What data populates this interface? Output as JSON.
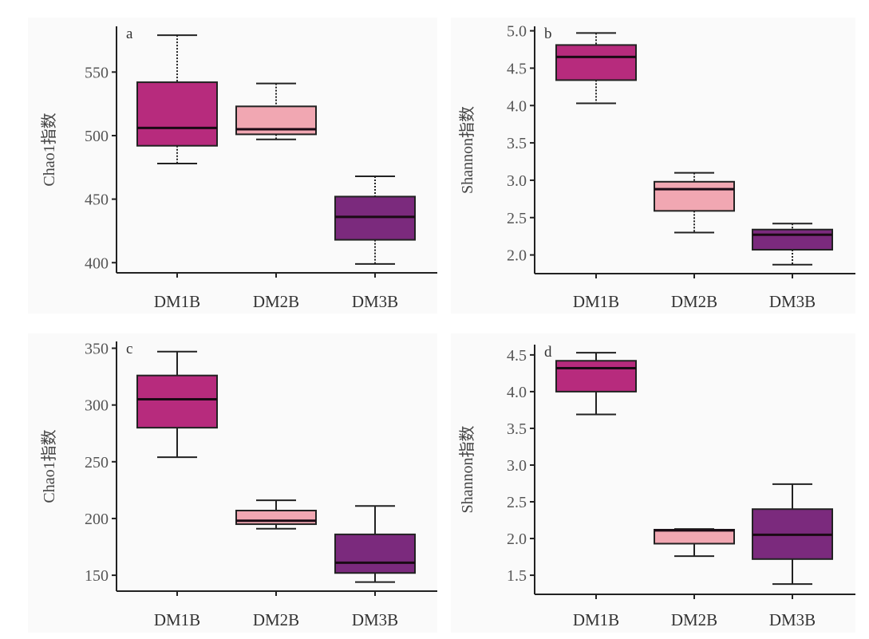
{
  "chart_data": [
    {
      "type": "box",
      "panel": "a",
      "ylabel": "Chao1指数",
      "ylim": [
        392,
        586
      ],
      "yticks": [
        400,
        450,
        500,
        550
      ],
      "whisker_style": "dotted",
      "categories": [
        "DM1B",
        "DM2B",
        "DM3B"
      ],
      "colors": [
        "#b72b7d",
        "#f1a7b2",
        "#7b2a7d"
      ],
      "boxes": [
        {
          "min": 478,
          "q1": 492,
          "median": 506,
          "q3": 542,
          "max": 579
        },
        {
          "min": 497,
          "q1": 501,
          "median": 505,
          "q3": 523,
          "max": 541
        },
        {
          "min": 399,
          "q1": 418,
          "median": 436,
          "q3": 452,
          "max": 468
        }
      ]
    },
    {
      "type": "box",
      "panel": "b",
      "ylabel": "Shannon指数",
      "ylim": [
        1.75,
        5.06
      ],
      "yticks": [
        "2.0",
        "2.5",
        "3.0",
        "3.5",
        "4.0",
        "4.5",
        "5.0"
      ],
      "whisker_style": "dotted",
      "categories": [
        "DM1B",
        "DM2B",
        "DM3B"
      ],
      "colors": [
        "#b72b7d",
        "#f1a7b2",
        "#7b2a7d"
      ],
      "boxes": [
        {
          "min": 4.03,
          "q1": 4.34,
          "median": 4.65,
          "q3": 4.81,
          "max": 4.97
        },
        {
          "min": 2.3,
          "q1": 2.59,
          "median": 2.88,
          "q3": 2.98,
          "max": 3.1
        },
        {
          "min": 1.87,
          "q1": 2.07,
          "median": 2.27,
          "q3": 2.34,
          "max": 2.42
        }
      ]
    },
    {
      "type": "box",
      "panel": "c",
      "ylabel": "Chao1指数",
      "ylim": [
        136,
        356
      ],
      "yticks": [
        150,
        200,
        250,
        300,
        350
      ],
      "whisker_style": "solid",
      "categories": [
        "DM1B",
        "DM2B",
        "DM3B"
      ],
      "colors": [
        "#b72b7d",
        "#f1a7b2",
        "#7b2a7d"
      ],
      "boxes": [
        {
          "min": 254,
          "q1": 280,
          "median": 305,
          "q3": 326,
          "max": 347
        },
        {
          "min": 191,
          "q1": 195,
          "median": 198,
          "q3": 207,
          "max": 216
        },
        {
          "min": 144,
          "q1": 152,
          "median": 161,
          "q3": 186,
          "max": 211
        }
      ]
    },
    {
      "type": "box",
      "panel": "d",
      "ylabel": "Shannon指数",
      "ylim": [
        1.24,
        4.64
      ],
      "yticks": [
        "1.5",
        "2.0",
        "2.5",
        "3.0",
        "3.5",
        "4.0",
        "4.5"
      ],
      "whisker_style": "solid",
      "categories": [
        "DM1B",
        "DM2B",
        "DM3B"
      ],
      "colors": [
        "#b72b7d",
        "#f1a7b2",
        "#7b2a7d"
      ],
      "boxes": [
        {
          "min": 3.69,
          "q1": 4.0,
          "median": 4.32,
          "q3": 4.42,
          "max": 4.53
        },
        {
          "min": 1.76,
          "q1": 1.93,
          "median": 2.11,
          "q3": 2.12,
          "max": 2.13
        },
        {
          "min": 1.38,
          "q1": 1.72,
          "median": 2.05,
          "q3": 2.4,
          "max": 2.74
        }
      ]
    }
  ]
}
